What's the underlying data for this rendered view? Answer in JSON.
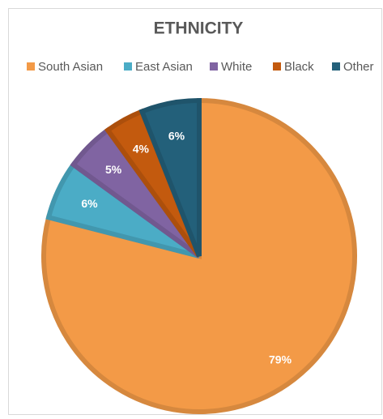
{
  "chart_data": {
    "type": "pie",
    "title": "ETHNICITY",
    "categories": [
      "South Asian",
      "East Asian",
      "White",
      "Black",
      "Other"
    ],
    "values": [
      79,
      6,
      5,
      4,
      6
    ],
    "value_labels": [
      "79%",
      "6%",
      "5%",
      "4%",
      "6%"
    ],
    "colors": [
      "#f39a47",
      "#4bacc6",
      "#8064a2",
      "#c35a0e",
      "#23607a"
    ],
    "legend": "top"
  }
}
